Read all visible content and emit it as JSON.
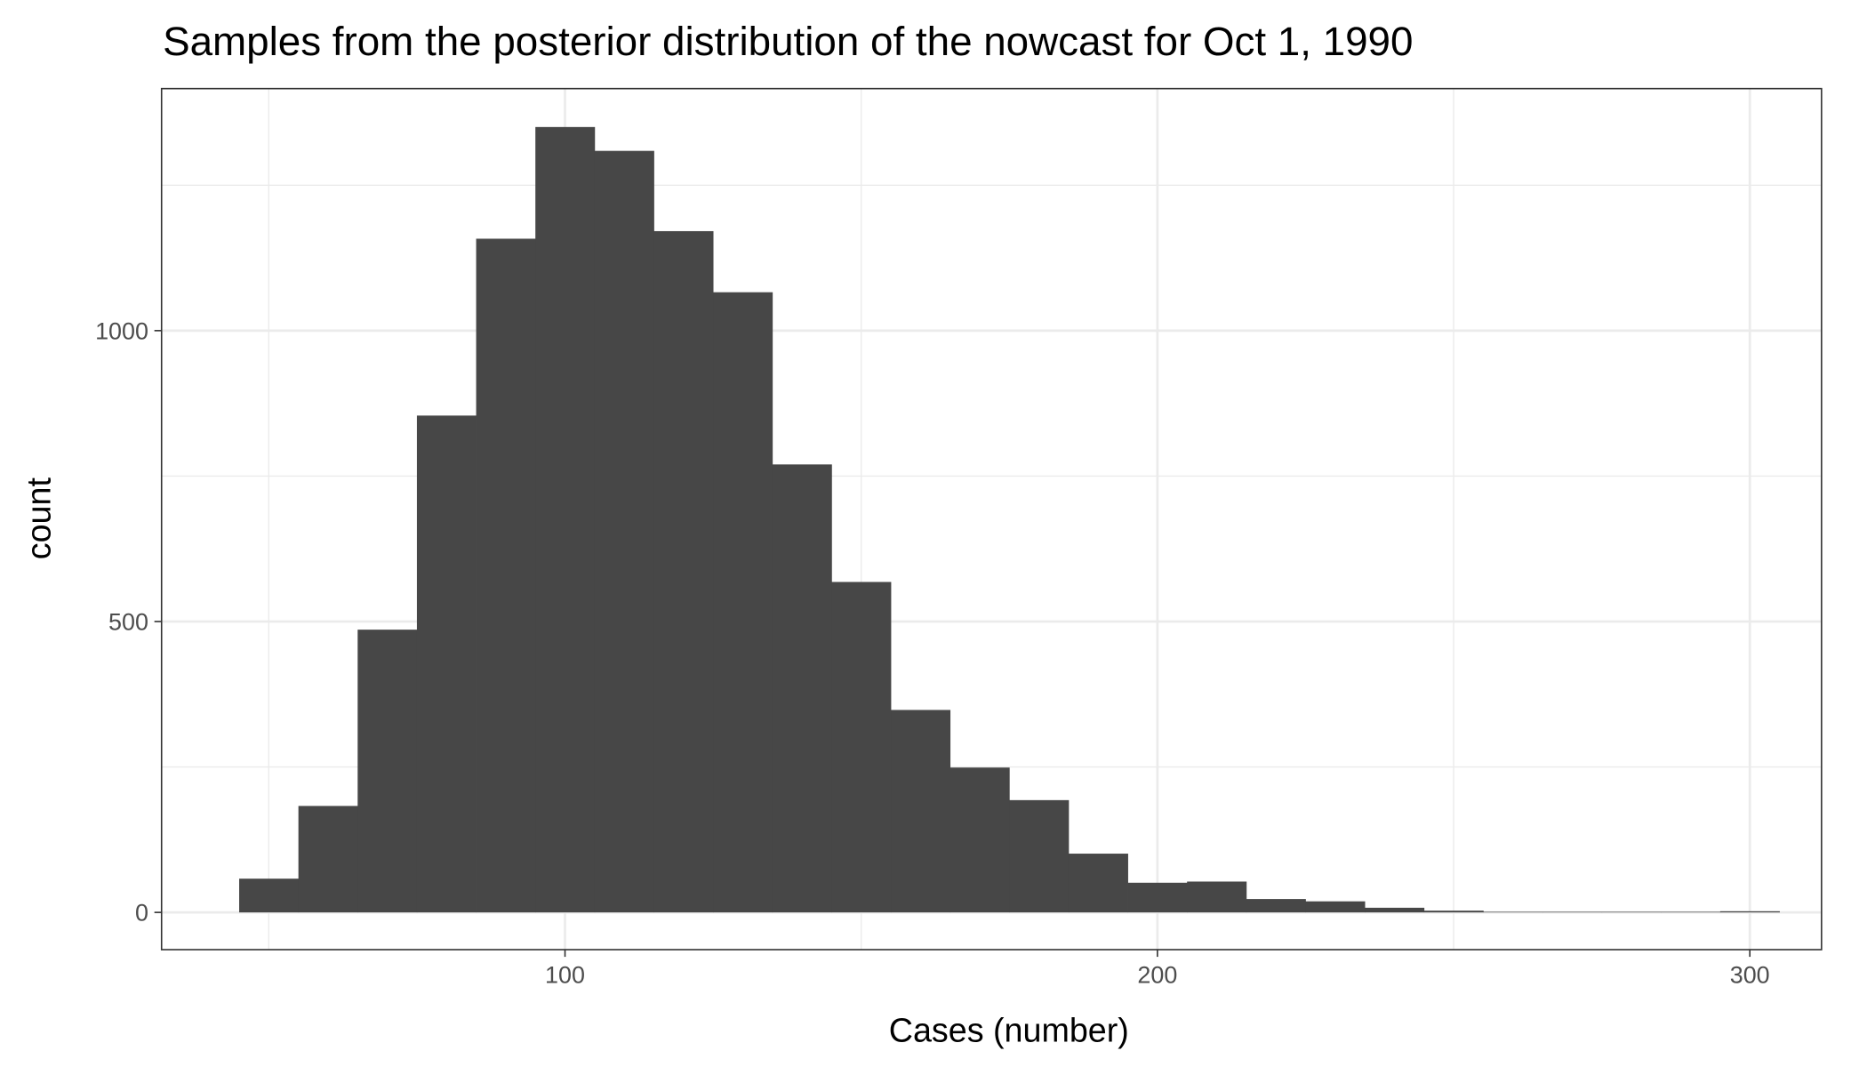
{
  "chart_data": {
    "type": "bar",
    "title": "Samples from the posterior distribution of the nowcast for Oct 1, 1990",
    "xlabel": "Cases (number)",
    "ylabel": "count",
    "bin_width": 10,
    "bin_centers": [
      50,
      60,
      70,
      80,
      90,
      100,
      110,
      120,
      130,
      140,
      150,
      160,
      170,
      180,
      190,
      200,
      210,
      220,
      230,
      240,
      250,
      260,
      270,
      280,
      290,
      300
    ],
    "values": [
      58,
      183,
      486,
      854,
      1158,
      1350,
      1309,
      1171,
      1066,
      770,
      568,
      348,
      249,
      193,
      101,
      51,
      53,
      23,
      19,
      8,
      3,
      1,
      1,
      1,
      1,
      2
    ],
    "xlim": [
      31.9,
      312.1
    ],
    "ylim": [
      -64,
      1416
    ],
    "x_ticks": [
      "100",
      "200",
      "300"
    ],
    "y_ticks": [
      "0",
      "500",
      "1000"
    ],
    "grid": true,
    "bar_color": "#474747"
  }
}
